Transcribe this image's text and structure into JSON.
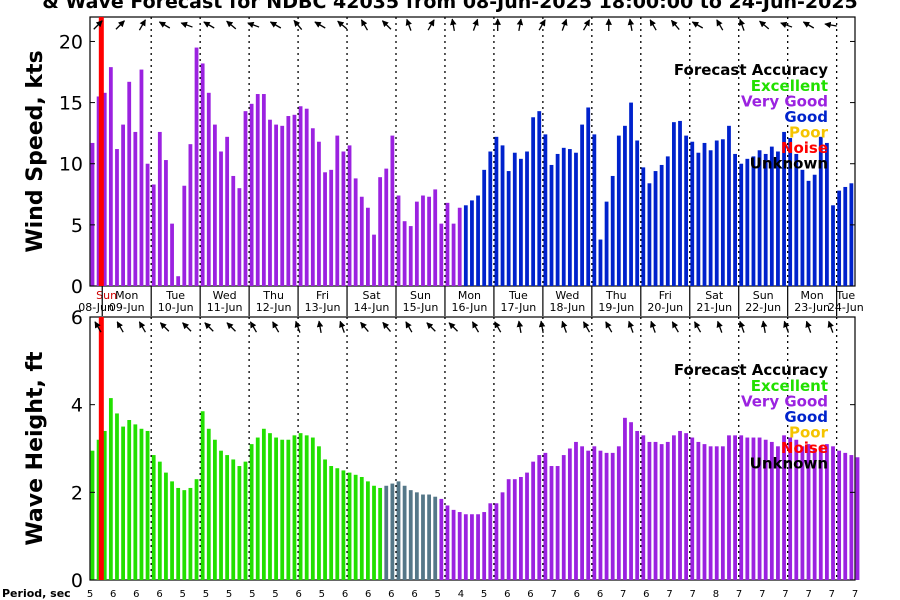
{
  "title": "& Wave Forecast for NDBC 42035 from 08-Jun-2025 18:00:00 to 24-Jun-2025",
  "colors": {
    "excellent": "#22e000",
    "very_good": "#9b22e0",
    "good": "#0022cc",
    "poor": "#f5c400",
    "noise": "#ff0000",
    "unknown": "#000000",
    "transition": "#557788",
    "now_line": "#ff0000"
  },
  "legend": {
    "title": "Forecast Accuracy",
    "items": [
      {
        "label": "Excellent",
        "color": "#22e000"
      },
      {
        "label": "Very Good",
        "color": "#9b22e0"
      },
      {
        "label": "Good",
        "color": "#0022cc"
      },
      {
        "label": "Poor",
        "color": "#f5c400"
      },
      {
        "label": "Noise",
        "color": "#ff0000"
      },
      {
        "label": "Unknown",
        "color": "#000000"
      }
    ]
  },
  "days": [
    {
      "dow": "Sun",
      "date": "08-Jun"
    },
    {
      "dow": "Mon",
      "date": "09-Jun"
    },
    {
      "dow": "Tue",
      "date": "10-Jun"
    },
    {
      "dow": "Wed",
      "date": "11-Jun"
    },
    {
      "dow": "Thu",
      "date": "12-Jun"
    },
    {
      "dow": "Fri",
      "date": "13-Jun"
    },
    {
      "dow": "Sat",
      "date": "14-Jun"
    },
    {
      "dow": "Sun",
      "date": "15-Jun"
    },
    {
      "dow": "Mon",
      "date": "16-Jun"
    },
    {
      "dow": "Tue",
      "date": "17-Jun"
    },
    {
      "dow": "Wed",
      "date": "18-Jun"
    },
    {
      "dow": "Thu",
      "date": "19-Jun"
    },
    {
      "dow": "Fri",
      "date": "20-Jun"
    },
    {
      "dow": "Sat",
      "date": "21-Jun"
    },
    {
      "dow": "Sun",
      "date": "22-Jun"
    },
    {
      "dow": "Mon",
      "date": "23-Jun"
    },
    {
      "dow": "Tue",
      "date": "24-Jun"
    }
  ],
  "period_label": "Period, sec",
  "periods": [
    5,
    6,
    6,
    6,
    5,
    5,
    5,
    5,
    5,
    6,
    5,
    6,
    6,
    6,
    6,
    5,
    4,
    5,
    6,
    6,
    7,
    6,
    6,
    7,
    6,
    7,
    7,
    8,
    7,
    7,
    7,
    7,
    7,
    7
  ],
  "chart_data": [
    {
      "type": "bar",
      "ylabel": "Wind Speed, kts",
      "ylim": [
        0,
        22
      ],
      "yticks": [
        0,
        5,
        10,
        15,
        20
      ],
      "time_start": "08-Jun-2025 18:00",
      "step_hours": 3,
      "values": [
        11.7,
        15.5,
        15.8,
        17.9,
        11.2,
        13.2,
        16.7,
        12.6,
        17.7,
        10.0,
        8.3,
        12.6,
        10.3,
        5.1,
        0.8,
        8.2,
        11.6,
        19.5,
        18.2,
        15.8,
        13.2,
        11.0,
        12.2,
        9.0,
        8.0,
        14.3,
        14.9,
        15.7,
        15.7,
        13.6,
        13.2,
        13.1,
        13.9,
        14.0,
        14.7,
        14.5,
        12.9,
        11.8,
        9.3,
        9.5,
        12.3,
        11.0,
        11.5,
        8.8,
        7.3,
        6.4,
        4.2,
        8.9,
        9.6,
        12.3,
        7.4,
        5.3,
        4.9,
        6.9,
        7.4,
        7.3,
        7.9,
        5.1,
        6.8,
        5.1,
        6.4,
        6.6,
        7.0,
        7.4,
        9.5,
        11.0,
        12.2,
        11.5,
        9.4,
        10.9,
        10.4,
        11.0,
        13.8,
        14.3,
        12.4,
        9.9,
        10.8,
        11.3,
        11.2,
        10.9,
        13.2,
        14.6,
        12.4,
        3.8,
        6.9,
        9.0,
        12.3,
        13.1,
        15.0,
        11.9,
        9.7,
        8.4,
        9.4,
        9.9,
        10.6,
        13.4,
        13.5,
        12.3,
        11.8,
        10.9,
        11.7,
        11.1,
        11.9,
        12.0,
        13.1,
        10.8,
        10.0,
        10.4,
        10.6,
        11.1,
        10.8,
        11.4,
        11.0,
        12.6,
        12.1,
        10.8,
        9.5,
        8.6,
        9.1,
        12.2,
        11.7,
        6.6,
        7.8,
        8.1,
        8.4
      ],
      "accuracy": [
        "very_good",
        61,
        "good",
        64
      ]
    },
    {
      "type": "bar",
      "ylabel": "Wave Height, ft",
      "ylim": [
        0,
        6
      ],
      "yticks": [
        0,
        2,
        4,
        6
      ],
      "time_start": "08-Jun-2025 18:00",
      "step_hours": 3,
      "values": [
        2.95,
        3.2,
        3.4,
        4.15,
        3.8,
        3.5,
        3.65,
        3.55,
        3.45,
        3.4,
        2.85,
        2.7,
        2.45,
        2.25,
        2.1,
        2.05,
        2.1,
        2.3,
        3.85,
        3.45,
        3.2,
        2.95,
        2.85,
        2.75,
        2.6,
        2.7,
        3.1,
        3.25,
        3.45,
        3.35,
        3.25,
        3.2,
        3.2,
        3.3,
        3.35,
        3.3,
        3.25,
        3.05,
        2.75,
        2.6,
        2.55,
        2.5,
        2.45,
        2.4,
        2.35,
        2.25,
        2.15,
        2.1,
        2.15,
        2.2,
        2.25,
        2.15,
        2.05,
        2.0,
        1.95,
        1.95,
        1.9,
        1.85,
        1.7,
        1.6,
        1.55,
        1.5,
        1.5,
        1.5,
        1.55,
        1.75,
        1.75,
        2.0,
        2.3,
        2.3,
        2.35,
        2.45,
        2.7,
        2.85,
        2.9,
        2.6,
        2.6,
        2.85,
        3.0,
        3.15,
        3.05,
        2.95,
        3.05,
        2.95,
        2.9,
        2.9,
        3.05,
        3.7,
        3.6,
        3.4,
        3.3,
        3.15,
        3.15,
        3.1,
        3.15,
        3.3,
        3.4,
        3.35,
        3.25,
        3.15,
        3.1,
        3.05,
        3.05,
        3.05,
        3.3,
        3.3,
        3.3,
        3.25,
        3.25,
        3.25,
        3.2,
        3.15,
        3.05,
        3.3,
        3.25,
        3.2,
        3.05,
        3.1,
        3.0,
        3.05,
        3.1,
        3.05,
        2.95,
        2.9,
        2.85,
        2.8
      ],
      "accuracy": [
        "excellent",
        48,
        "transition",
        57,
        "very_good",
        125
      ]
    }
  ]
}
